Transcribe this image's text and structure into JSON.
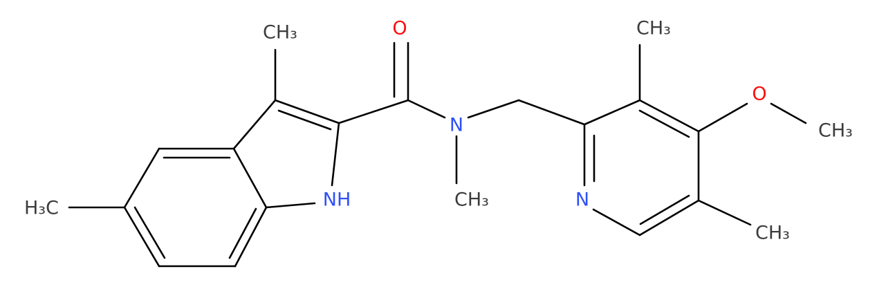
{
  "atoms": [
    {
      "label": "CH₃"
    },
    {
      "label": "O"
    },
    {
      "label": "CH₃"
    },
    {
      "label": "O"
    },
    {
      "label": "CH₃"
    },
    {
      "label": "H₃C"
    },
    {
      "label": "NH"
    },
    {
      "label": "N"
    },
    {
      "label": "CH₃"
    },
    {
      "label": "N"
    },
    {
      "label": "CH₃"
    }
  ]
}
